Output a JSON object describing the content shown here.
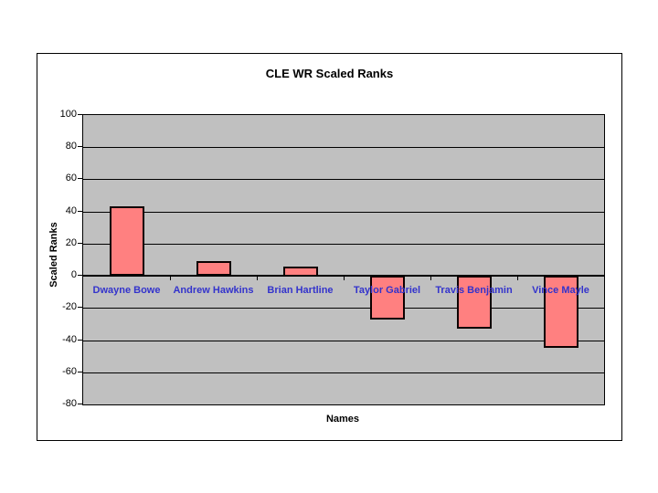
{
  "chart_data": {
    "type": "bar",
    "title": "CLE WR Scaled Ranks",
    "xlabel": "Names",
    "ylabel": "Scaled Ranks",
    "categories": [
      "Dwayne Bowe",
      "Andrew Hawkins",
      "Brian Hartline",
      "Taylor Gabriel",
      "Travis Benjamin",
      "Vince Mayle"
    ],
    "values": [
      43,
      9,
      6,
      -27,
      -33,
      -45
    ],
    "ylim": [
      -80,
      100
    ],
    "yticks": [
      100,
      80,
      60,
      40,
      20,
      0,
      -20,
      -40,
      -60,
      -80
    ],
    "grid": true,
    "legend": false,
    "colors": {
      "bar_fill": "#ff8080",
      "bar_border": "#0d0000",
      "plot_background": "#c0c0c0",
      "category_label": "#3333cc",
      "gridline": "#000000",
      "chart_border": "#000000",
      "page_background": "#ffffff",
      "text": "#000000"
    }
  }
}
